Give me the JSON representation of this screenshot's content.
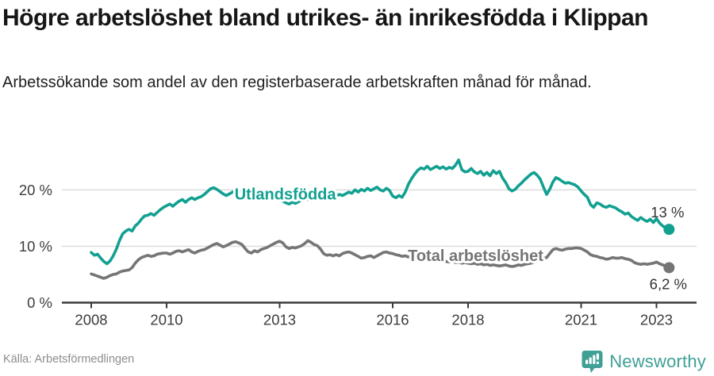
{
  "colors": {
    "foreign_line": "#12a091",
    "total_line": "#757575",
    "grid": "#dcdcdc",
    "axis": "#3a3a3a",
    "tick_text": "#3d3d3d",
    "value_text": "#333333",
    "brand_teal": "#3fa096"
  },
  "chart_data": {
    "type": "line",
    "title": "Högre arbetslöshet bland utrikes- än inrikesfödda i Klippan",
    "subtitle": "Arbetssökande som andel av den registerbaserade arbetskraften månad för månad.",
    "source": "Källa: Arbetsförmedlingen",
    "x_start_year": 2008,
    "points_per_year": 12,
    "x_ticks": [
      2008,
      2010,
      2013,
      2016,
      2018,
      2021,
      2023
    ],
    "y_ticks": [
      {
        "value": 0,
        "label": "0 %"
      },
      {
        "value": 10,
        "label": "10 %"
      },
      {
        "value": 20,
        "label": "20 %"
      }
    ],
    "ylim": [
      0,
      27
    ],
    "grid": "horizontal",
    "legend": "inline-labels",
    "series": [
      {
        "name": "Utlandsfödda",
        "color": "#12a091",
        "end_label": "13 %",
        "label_anchor": {
          "year": 2013.15,
          "value": 19.3
        },
        "end_label_offset": {
          "dx": -2,
          "dy": -15
        },
        "values": [
          8.9,
          8.4,
          8.6,
          7.9,
          7.3,
          6.9,
          7.4,
          8.3,
          9.5,
          11.0,
          12.2,
          12.7,
          13.0,
          12.7,
          13.6,
          14.1,
          14.8,
          15.4,
          15.5,
          15.8,
          15.5,
          16.0,
          16.5,
          16.9,
          17.2,
          17.5,
          17.1,
          17.6,
          18.0,
          18.3,
          17.8,
          18.3,
          18.6,
          18.3,
          18.6,
          18.8,
          19.2,
          19.7,
          20.2,
          20.4,
          20.1,
          19.7,
          19.3,
          19.0,
          19.3,
          19.6,
          19.9,
          19.8,
          19.7,
          19.3,
          19.0,
          18.8,
          19.1,
          18.9,
          18.6,
          18.4,
          18.7,
          18.9,
          18.5,
          18.2,
          18.4,
          18.0,
          17.7,
          17.5,
          17.8,
          17.6,
          17.9,
          18.2,
          18.5,
          18.3,
          18.6,
          18.8,
          18.6,
          18.9,
          18.7,
          19.0,
          18.8,
          19.1,
          18.9,
          19.2,
          19.0,
          19.3,
          19.6,
          19.4,
          20.0,
          19.6,
          20.1,
          19.8,
          20.3,
          19.9,
          20.2,
          20.5,
          20.0,
          19.8,
          20.3,
          19.9,
          18.9,
          18.6,
          19.0,
          18.7,
          19.6,
          21.0,
          22.0,
          22.8,
          23.5,
          23.9,
          23.7,
          24.2,
          23.6,
          23.9,
          24.2,
          23.8,
          24.1,
          23.7,
          24.0,
          23.8,
          24.4,
          25.3,
          23.6,
          23.2,
          23.3,
          23.8,
          23.2,
          22.9,
          23.3,
          22.6,
          23.1,
          22.5,
          23.4,
          22.9,
          23.3,
          22.1,
          21.3,
          20.2,
          19.8,
          20.1,
          20.7,
          21.2,
          21.8,
          22.3,
          22.8,
          23.1,
          22.6,
          21.9,
          20.5,
          19.2,
          20.1,
          21.4,
          22.2,
          21.9,
          21.5,
          21.2,
          21.3,
          21.1,
          20.9,
          20.5,
          19.8,
          19.2,
          18.7,
          17.4,
          16.9,
          17.7,
          17.5,
          17.1,
          16.9,
          17.2,
          17.0,
          16.8,
          16.4,
          16.1,
          15.7,
          15.9,
          15.3,
          14.9,
          14.6,
          15.1,
          14.7,
          14.4,
          14.8,
          14.2,
          14.9,
          14.1,
          13.6,
          13.2,
          13.0
        ]
      },
      {
        "name": "Total arbetslöshet",
        "color": "#757575",
        "end_label": "6,2 %",
        "label_anchor": {
          "year": 2018.2,
          "value": 8.4
        },
        "end_label_offset": {
          "dx": -1,
          "dy": 27
        },
        "values": [
          5.1,
          4.9,
          4.7,
          4.5,
          4.3,
          4.5,
          4.8,
          5.0,
          5.1,
          5.4,
          5.6,
          5.7,
          5.8,
          6.2,
          7.0,
          7.6,
          8.0,
          8.2,
          8.4,
          8.2,
          8.3,
          8.6,
          8.7,
          8.8,
          8.8,
          8.6,
          8.8,
          9.1,
          9.2,
          9.0,
          9.2,
          9.4,
          9.0,
          8.8,
          9.1,
          9.3,
          9.4,
          9.7,
          10.0,
          10.3,
          10.5,
          10.2,
          9.9,
          10.1,
          10.4,
          10.7,
          10.8,
          10.6,
          10.3,
          9.6,
          9.0,
          8.8,
          9.2,
          9.0,
          9.4,
          9.6,
          9.8,
          10.1,
          10.4,
          10.7,
          10.9,
          10.6,
          9.9,
          9.6,
          9.8,
          9.7,
          9.9,
          10.1,
          10.5,
          11.0,
          10.7,
          10.3,
          10.1,
          9.5,
          8.7,
          8.4,
          8.5,
          8.3,
          8.5,
          8.3,
          8.7,
          8.9,
          9.0,
          8.8,
          8.5,
          8.2,
          7.9,
          8.0,
          8.2,
          8.3,
          8.0,
          8.3,
          8.6,
          8.9,
          9.0,
          8.8,
          8.7,
          8.5,
          8.4,
          8.2,
          8.3,
          8.1,
          8.2,
          8.0,
          7.9,
          8.1,
          7.9,
          7.8,
          7.7,
          7.6,
          7.5,
          7.4,
          7.5,
          7.3,
          7.2,
          7.3,
          7.1,
          7.2,
          7.0,
          7.1,
          7.0,
          6.9,
          7.0,
          6.8,
          6.9,
          6.7,
          6.8,
          6.6,
          6.7,
          6.6,
          6.5,
          6.6,
          6.7,
          6.5,
          6.4,
          6.5,
          6.7,
          6.6,
          6.8,
          6.9,
          7.0,
          7.2,
          7.4,
          7.6,
          7.8,
          8.0,
          8.7,
          9.4,
          9.6,
          9.4,
          9.3,
          9.5,
          9.6,
          9.6,
          9.7,
          9.7,
          9.6,
          9.3,
          9.0,
          8.5,
          8.3,
          8.2,
          8.0,
          7.9,
          7.7,
          7.8,
          8.0,
          7.9,
          7.9,
          8.0,
          7.8,
          7.7,
          7.5,
          7.1,
          6.9,
          6.8,
          6.9,
          6.8,
          6.9,
          7.0,
          7.2,
          6.9,
          6.7,
          6.4,
          6.2
        ]
      }
    ]
  },
  "footer": {
    "brand": "Newsworthy"
  }
}
